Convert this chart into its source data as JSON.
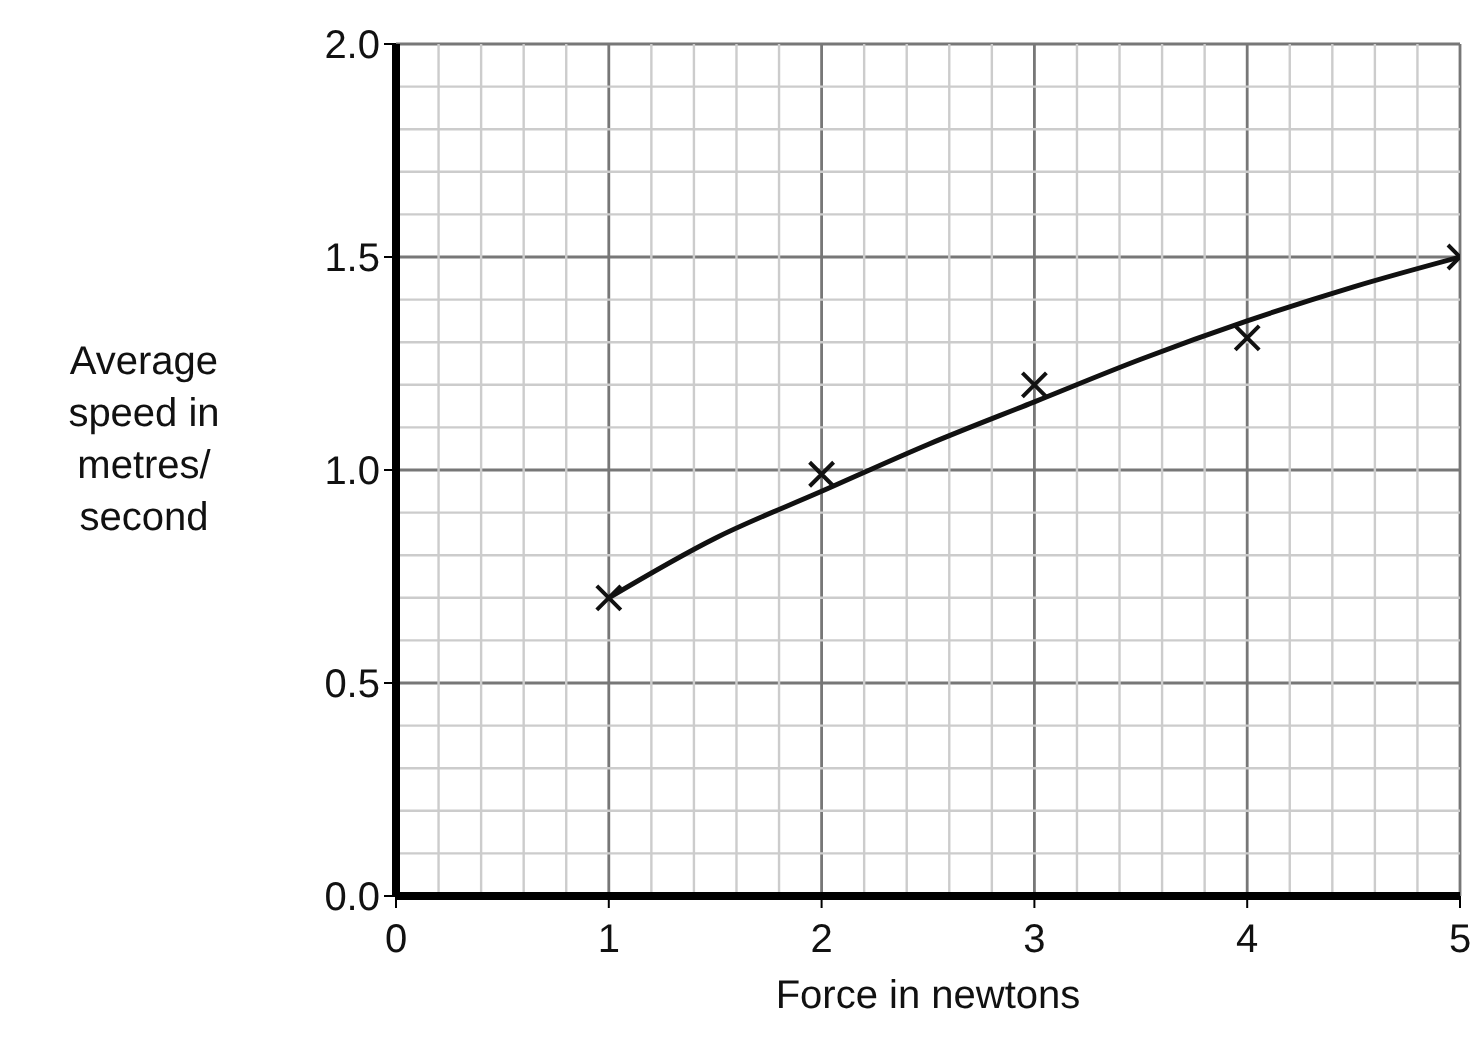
{
  "chart_data": {
    "type": "scatter",
    "xlabel": "Force in newtons",
    "ylabel": "Average speed in metres/ second",
    "series": [
      {
        "color": "#111111",
        "x": [
          1,
          2,
          3,
          4,
          5
        ],
        "values": [
          0.7,
          0.99,
          1.2,
          1.31,
          1.5
        ],
        "marker": "cross"
      },
      {
        "type": "line",
        "color": "#111111",
        "x": [
          1,
          1.5,
          2,
          2.5,
          3,
          3.5,
          4,
          4.5,
          5
        ],
        "values": [
          0.7,
          0.84,
          0.95,
          1.06,
          1.16,
          1.26,
          1.35,
          1.43,
          1.5
        ],
        "marker": "none",
        "line_style": "solid"
      }
    ],
    "xlim": [
      0,
      5
    ],
    "xticks": [
      0,
      1,
      2,
      3,
      4,
      5
    ],
    "ylim": [
      0,
      2
    ],
    "yticks": [
      {
        "value": 0,
        "label": "0.0"
      },
      {
        "value": 0.5,
        "label": "0.5"
      },
      {
        "value": 1,
        "label": "1.0"
      },
      {
        "value": 1.5,
        "label": "1.5"
      },
      {
        "value": 2,
        "label": "2.0"
      }
    ],
    "grid": true
  }
}
